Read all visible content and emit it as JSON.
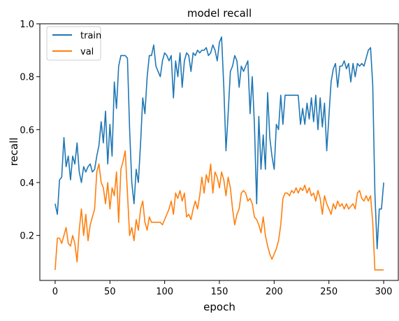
{
  "chart_data": {
    "type": "line",
    "title": "model recall",
    "xlabel": "epoch",
    "ylabel": "recall",
    "xlim": [
      -14,
      314
    ],
    "ylim": [
      0.03,
      1.0
    ],
    "xticks": [
      0,
      50,
      100,
      150,
      200,
      250,
      300
    ],
    "yticks": [
      0.2,
      0.4,
      0.6,
      0.8,
      1.0
    ],
    "ytick_labels": [
      "0.2",
      "0.4",
      "0.6",
      "0.8",
      "1.0"
    ],
    "grid": false,
    "legend": "top-left",
    "series": [
      {
        "name": "train",
        "color": "#1f77b4",
        "points": [
          [
            0,
            0.32
          ],
          [
            2,
            0.28
          ],
          [
            4,
            0.41
          ],
          [
            6,
            0.42
          ],
          [
            8,
            0.57
          ],
          [
            10,
            0.46
          ],
          [
            12,
            0.5
          ],
          [
            14,
            0.41
          ],
          [
            16,
            0.5
          ],
          [
            18,
            0.47
          ],
          [
            20,
            0.55
          ],
          [
            22,
            0.44
          ],
          [
            24,
            0.4
          ],
          [
            26,
            0.46
          ],
          [
            28,
            0.44
          ],
          [
            30,
            0.46
          ],
          [
            32,
            0.47
          ],
          [
            34,
            0.44
          ],
          [
            36,
            0.45
          ],
          [
            38,
            0.5
          ],
          [
            40,
            0.54
          ],
          [
            42,
            0.63
          ],
          [
            44,
            0.55
          ],
          [
            46,
            0.67
          ],
          [
            48,
            0.47
          ],
          [
            50,
            0.62
          ],
          [
            52,
            0.5
          ],
          [
            54,
            0.78
          ],
          [
            56,
            0.68
          ],
          [
            58,
            0.84
          ],
          [
            60,
            0.88
          ],
          [
            62,
            0.88
          ],
          [
            64,
            0.88
          ],
          [
            66,
            0.87
          ],
          [
            68,
            0.6
          ],
          [
            70,
            0.4
          ],
          [
            72,
            0.32
          ],
          [
            74,
            0.45
          ],
          [
            76,
            0.4
          ],
          [
            78,
            0.55
          ],
          [
            80,
            0.72
          ],
          [
            82,
            0.66
          ],
          [
            84,
            0.8
          ],
          [
            86,
            0.88
          ],
          [
            88,
            0.88
          ],
          [
            90,
            0.92
          ],
          [
            92,
            0.84
          ],
          [
            94,
            0.82
          ],
          [
            96,
            0.8
          ],
          [
            98,
            0.86
          ],
          [
            100,
            0.89
          ],
          [
            102,
            0.88
          ],
          [
            104,
            0.86
          ],
          [
            106,
            0.88
          ],
          [
            108,
            0.72
          ],
          [
            110,
            0.86
          ],
          [
            112,
            0.8
          ],
          [
            114,
            0.89
          ],
          [
            116,
            0.76
          ],
          [
            118,
            0.86
          ],
          [
            120,
            0.89
          ],
          [
            122,
            0.88
          ],
          [
            124,
            0.82
          ],
          [
            126,
            0.89
          ],
          [
            128,
            0.88
          ],
          [
            130,
            0.9
          ],
          [
            132,
            0.89
          ],
          [
            134,
            0.9
          ],
          [
            136,
            0.9
          ],
          [
            138,
            0.91
          ],
          [
            140,
            0.88
          ],
          [
            142,
            0.89
          ],
          [
            144,
            0.92
          ],
          [
            146,
            0.9
          ],
          [
            148,
            0.86
          ],
          [
            150,
            0.93
          ],
          [
            152,
            0.95
          ],
          [
            154,
            0.76
          ],
          [
            156,
            0.52
          ],
          [
            158,
            0.66
          ],
          [
            160,
            0.82
          ],
          [
            162,
            0.84
          ],
          [
            164,
            0.88
          ],
          [
            166,
            0.86
          ],
          [
            168,
            0.76
          ],
          [
            170,
            0.84
          ],
          [
            172,
            0.82
          ],
          [
            174,
            0.84
          ],
          [
            176,
            0.86
          ],
          [
            178,
            0.66
          ],
          [
            180,
            0.8
          ],
          [
            182,
            0.62
          ],
          [
            184,
            0.32
          ],
          [
            186,
            0.65
          ],
          [
            188,
            0.45
          ],
          [
            190,
            0.58
          ],
          [
            192,
            0.45
          ],
          [
            194,
            0.74
          ],
          [
            196,
            0.57
          ],
          [
            198,
            0.5
          ],
          [
            200,
            0.45
          ],
          [
            202,
            0.62
          ],
          [
            204,
            0.6
          ],
          [
            206,
            0.73
          ],
          [
            208,
            0.62
          ],
          [
            210,
            0.73
          ],
          [
            212,
            0.73
          ],
          [
            214,
            0.73
          ],
          [
            216,
            0.73
          ],
          [
            218,
            0.73
          ],
          [
            220,
            0.73
          ],
          [
            222,
            0.73
          ],
          [
            224,
            0.62
          ],
          [
            226,
            0.68
          ],
          [
            228,
            0.62
          ],
          [
            230,
            0.7
          ],
          [
            232,
            0.64
          ],
          [
            234,
            0.72
          ],
          [
            236,
            0.63
          ],
          [
            238,
            0.73
          ],
          [
            240,
            0.6
          ],
          [
            242,
            0.72
          ],
          [
            244,
            0.61
          ],
          [
            246,
            0.7
          ],
          [
            248,
            0.52
          ],
          [
            250,
            0.65
          ],
          [
            252,
            0.78
          ],
          [
            254,
            0.83
          ],
          [
            256,
            0.85
          ],
          [
            258,
            0.76
          ],
          [
            260,
            0.84
          ],
          [
            262,
            0.84
          ],
          [
            264,
            0.86
          ],
          [
            266,
            0.83
          ],
          [
            268,
            0.85
          ],
          [
            270,
            0.78
          ],
          [
            272,
            0.85
          ],
          [
            274,
            0.8
          ],
          [
            276,
            0.85
          ],
          [
            278,
            0.84
          ],
          [
            280,
            0.85
          ],
          [
            282,
            0.84
          ],
          [
            284,
            0.87
          ],
          [
            286,
            0.9
          ],
          [
            288,
            0.91
          ],
          [
            290,
            0.77
          ],
          [
            292,
            0.36
          ],
          [
            294,
            0.15
          ],
          [
            296,
            0.3
          ],
          [
            298,
            0.3
          ],
          [
            300,
            0.4
          ]
        ]
      },
      {
        "name": "val",
        "color": "#ff7f0e",
        "points": [
          [
            0,
            0.07
          ],
          [
            2,
            0.19
          ],
          [
            4,
            0.19
          ],
          [
            6,
            0.17
          ],
          [
            8,
            0.2
          ],
          [
            10,
            0.23
          ],
          [
            12,
            0.17
          ],
          [
            14,
            0.16
          ],
          [
            16,
            0.2
          ],
          [
            18,
            0.17
          ],
          [
            20,
            0.1
          ],
          [
            22,
            0.22
          ],
          [
            24,
            0.3
          ],
          [
            26,
            0.2
          ],
          [
            28,
            0.28
          ],
          [
            30,
            0.18
          ],
          [
            32,
            0.24
          ],
          [
            34,
            0.27
          ],
          [
            36,
            0.3
          ],
          [
            38,
            0.44
          ],
          [
            40,
            0.47
          ],
          [
            42,
            0.4
          ],
          [
            44,
            0.38
          ],
          [
            46,
            0.32
          ],
          [
            48,
            0.4
          ],
          [
            50,
            0.3
          ],
          [
            52,
            0.38
          ],
          [
            54,
            0.35
          ],
          [
            56,
            0.44
          ],
          [
            58,
            0.25
          ],
          [
            60,
            0.45
          ],
          [
            62,
            0.48
          ],
          [
            64,
            0.52
          ],
          [
            66,
            0.36
          ],
          [
            68,
            0.2
          ],
          [
            70,
            0.23
          ],
          [
            72,
            0.18
          ],
          [
            74,
            0.26
          ],
          [
            76,
            0.22
          ],
          [
            78,
            0.3
          ],
          [
            80,
            0.33
          ],
          [
            82,
            0.25
          ],
          [
            84,
            0.22
          ],
          [
            86,
            0.27
          ],
          [
            88,
            0.25
          ],
          [
            90,
            0.25
          ],
          [
            92,
            0.25
          ],
          [
            94,
            0.25
          ],
          [
            96,
            0.25
          ],
          [
            98,
            0.24
          ],
          [
            100,
            0.26
          ],
          [
            102,
            0.28
          ],
          [
            104,
            0.3
          ],
          [
            106,
            0.33
          ],
          [
            108,
            0.28
          ],
          [
            110,
            0.36
          ],
          [
            112,
            0.34
          ],
          [
            114,
            0.37
          ],
          [
            116,
            0.33
          ],
          [
            118,
            0.36
          ],
          [
            120,
            0.27
          ],
          [
            122,
            0.28
          ],
          [
            124,
            0.26
          ],
          [
            126,
            0.3
          ],
          [
            128,
            0.33
          ],
          [
            130,
            0.3
          ],
          [
            132,
            0.35
          ],
          [
            134,
            0.42
          ],
          [
            136,
            0.36
          ],
          [
            138,
            0.43
          ],
          [
            140,
            0.4
          ],
          [
            142,
            0.47
          ],
          [
            144,
            0.36
          ],
          [
            146,
            0.44
          ],
          [
            148,
            0.42
          ],
          [
            150,
            0.38
          ],
          [
            152,
            0.44
          ],
          [
            154,
            0.41
          ],
          [
            156,
            0.35
          ],
          [
            158,
            0.42
          ],
          [
            160,
            0.38
          ],
          [
            162,
            0.3
          ],
          [
            164,
            0.24
          ],
          [
            166,
            0.28
          ],
          [
            168,
            0.3
          ],
          [
            170,
            0.36
          ],
          [
            172,
            0.37
          ],
          [
            174,
            0.36
          ],
          [
            176,
            0.33
          ],
          [
            178,
            0.34
          ],
          [
            180,
            0.32
          ],
          [
            182,
            0.27
          ],
          [
            184,
            0.26
          ],
          [
            186,
            0.24
          ],
          [
            188,
            0.21
          ],
          [
            190,
            0.27
          ],
          [
            192,
            0.2
          ],
          [
            194,
            0.16
          ],
          [
            196,
            0.13
          ],
          [
            198,
            0.11
          ],
          [
            200,
            0.13
          ],
          [
            202,
            0.15
          ],
          [
            204,
            0.18
          ],
          [
            206,
            0.24
          ],
          [
            208,
            0.34
          ],
          [
            210,
            0.36
          ],
          [
            212,
            0.36
          ],
          [
            214,
            0.35
          ],
          [
            216,
            0.37
          ],
          [
            218,
            0.36
          ],
          [
            220,
            0.38
          ],
          [
            222,
            0.36
          ],
          [
            224,
            0.38
          ],
          [
            226,
            0.37
          ],
          [
            228,
            0.39
          ],
          [
            230,
            0.36
          ],
          [
            232,
            0.38
          ],
          [
            234,
            0.35
          ],
          [
            236,
            0.36
          ],
          [
            238,
            0.33
          ],
          [
            240,
            0.37
          ],
          [
            242,
            0.34
          ],
          [
            244,
            0.28
          ],
          [
            246,
            0.35
          ],
          [
            248,
            0.32
          ],
          [
            250,
            0.3
          ],
          [
            252,
            0.28
          ],
          [
            254,
            0.32
          ],
          [
            256,
            0.3
          ],
          [
            258,
            0.33
          ],
          [
            260,
            0.31
          ],
          [
            262,
            0.32
          ],
          [
            264,
            0.3
          ],
          [
            266,
            0.32
          ],
          [
            268,
            0.3
          ],
          [
            270,
            0.31
          ],
          [
            272,
            0.32
          ],
          [
            274,
            0.3
          ],
          [
            276,
            0.36
          ],
          [
            278,
            0.37
          ],
          [
            280,
            0.34
          ],
          [
            282,
            0.33
          ],
          [
            284,
            0.35
          ],
          [
            286,
            0.33
          ],
          [
            288,
            0.35
          ],
          [
            290,
            0.25
          ],
          [
            292,
            0.07
          ],
          [
            294,
            0.07
          ],
          [
            296,
            0.07
          ],
          [
            298,
            0.07
          ],
          [
            300,
            0.07
          ]
        ]
      }
    ]
  }
}
